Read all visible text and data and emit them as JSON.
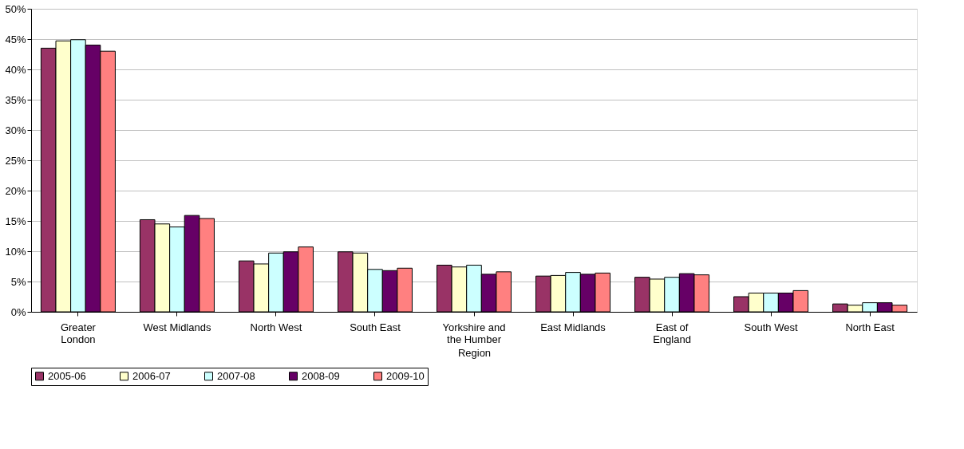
{
  "chart_data": {
    "type": "bar",
    "xlabel": "Region",
    "categories": [
      "Greater London",
      "West Midlands",
      "North West",
      "South East",
      "Yorkshire and the Humber",
      "East Midlands",
      "East of England",
      "South West",
      "North East"
    ],
    "series": [
      {
        "name": "2005-06",
        "color": "#993366",
        "values": [
          43.5,
          15.2,
          8.4,
          9.9,
          7.7,
          5.9,
          5.7,
          2.5,
          1.3
        ]
      },
      {
        "name": "2006-07",
        "color": "#ffffcc",
        "values": [
          44.7,
          14.5,
          7.9,
          9.7,
          7.4,
          6.0,
          5.4,
          3.1,
          1.1
        ]
      },
      {
        "name": "2007-08",
        "color": "#ccffff",
        "values": [
          44.9,
          14.0,
          9.7,
          7.0,
          7.7,
          6.5,
          5.7,
          3.1,
          1.5
        ]
      },
      {
        "name": "2008-09",
        "color": "#660066",
        "values": [
          44.0,
          15.9,
          9.9,
          6.8,
          6.2,
          6.2,
          6.3,
          3.1,
          1.5
        ]
      },
      {
        "name": "2009-10",
        "color": "#ff8080",
        "values": [
          43.0,
          15.4,
          10.7,
          7.2,
          6.6,
          6.4,
          6.1,
          3.5,
          1.1
        ]
      }
    ],
    "ylim": [
      0,
      50
    ],
    "yticks": [
      {
        "value": 0,
        "label": "0%"
      },
      {
        "value": 5,
        "label": "5%"
      },
      {
        "value": 10,
        "label": "10%"
      },
      {
        "value": 15,
        "label": "15%"
      },
      {
        "value": 20,
        "label": "20%"
      },
      {
        "value": 25,
        "label": "25%"
      },
      {
        "value": 30,
        "label": "30%"
      },
      {
        "value": 35,
        "label": "35%"
      },
      {
        "value": 40,
        "label": "40%"
      },
      {
        "value": 45,
        "label": "45%"
      },
      {
        "value": 50,
        "label": "50%"
      }
    ],
    "grid": "y",
    "legend": "bottom"
  }
}
